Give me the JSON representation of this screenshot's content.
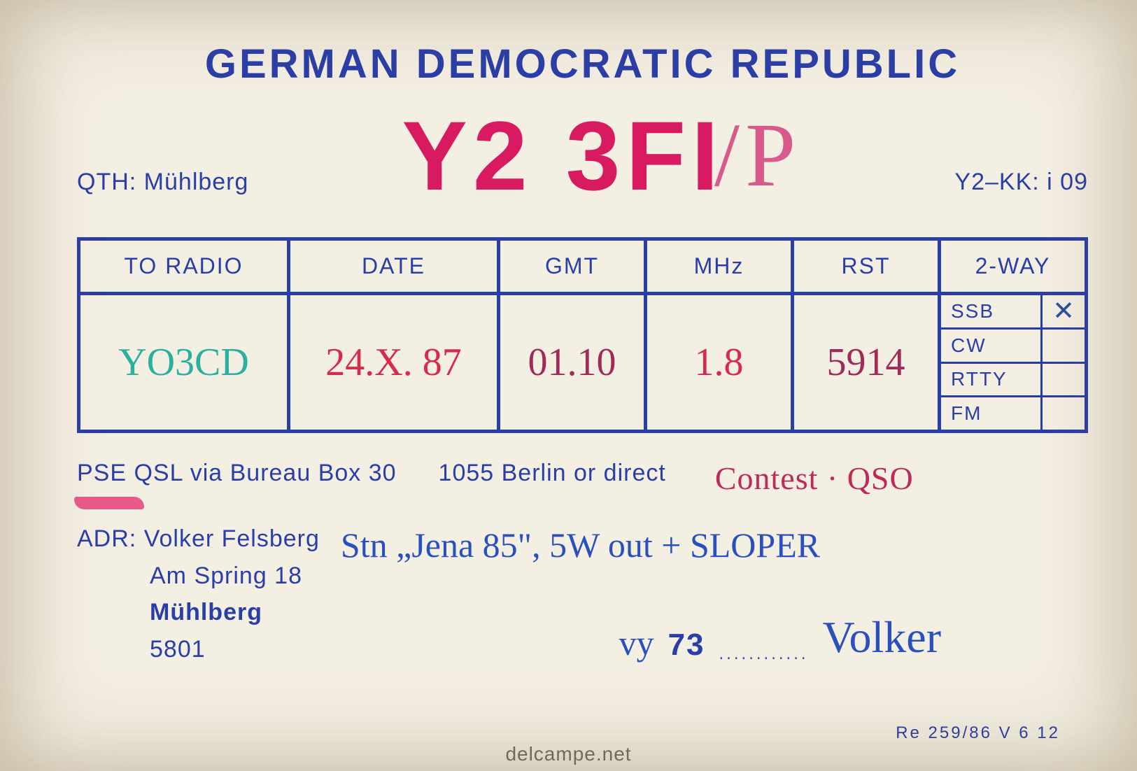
{
  "header": "GERMAN DEMOCRATIC REPUBLIC",
  "callsign": "Y2 3FI",
  "callsign_suffix": "/P",
  "qth_label": "QTH:",
  "qth_value": "Mühlberg",
  "grid_label": "Y2–KK:",
  "grid_value": "i 09",
  "columns": {
    "toradio": "TO RADIO",
    "date": "DATE",
    "gmt": "GMT",
    "mhz": "MHz",
    "rst": "RST",
    "twoway": "2-WAY"
  },
  "values": {
    "toradio": "YO3CD",
    "date": "24.X. 87",
    "gmt": "01.10",
    "mhz": "1.8",
    "rst": "5914"
  },
  "twoway": [
    {
      "label": "SSB",
      "mark": "✕"
    },
    {
      "label": "CW",
      "mark": ""
    },
    {
      "label": "RTTY",
      "mark": ""
    },
    {
      "label": "FM",
      "mark": ""
    }
  ],
  "pse_line_1": "PSE QSL via Bureau Box 30",
  "pse_line_2": "1055 Berlin or direct",
  "contest_note": "Contest · QSO",
  "adr_label": "ADR:",
  "adr": {
    "name": "Volker Felsberg",
    "street": "Am Spring 18",
    "city": "Mühlberg",
    "postcode": "5801"
  },
  "rig_note": "Stn „Jena 85\", 5W out + SLOPER",
  "vy": "vy",
  "seventythree": "73",
  "sig_dots": "............",
  "signature": "Volker",
  "printcode": "Re 259/86   V 6 12",
  "watermark": "delcampe.net",
  "colors": {
    "blue": "#2a3ea8",
    "magenta": "#d81b60",
    "pink": "#e85a8a",
    "teal": "#2ab0a0",
    "red": "#d82a4a",
    "wine": "#a02a5a",
    "inkblue": "#2a50c0",
    "paper": "#f4efe3"
  }
}
